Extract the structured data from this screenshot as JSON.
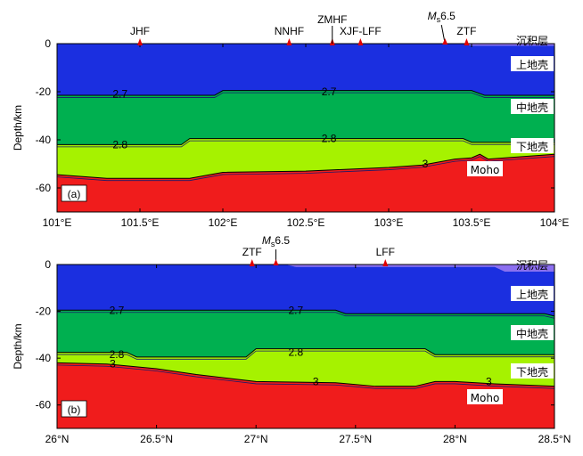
{
  "chart_data": [
    {
      "type": "cross-section",
      "panel_label": "(a)",
      "ylabel": "Depth/km",
      "ylim": [
        -70,
        0
      ],
      "yticks": [
        0,
        -20,
        -40,
        -60
      ],
      "ytick_labels": [
        "0",
        "-20",
        "-40",
        "-60"
      ],
      "xlim": [
        101,
        104
      ],
      "xticks": [
        101,
        101.5,
        102,
        102.5,
        103,
        103.5,
        104
      ],
      "xtick_labels": [
        "101°E",
        "101.5°E",
        "102°E",
        "102.5°E",
        "103°E",
        "103.5°E",
        "104°E"
      ],
      "faults": [
        {
          "name": "JHF",
          "x": 101.5
        },
        {
          "name": "NNHF",
          "x": 102.4
        },
        {
          "name": "ZMHF",
          "x": 102.66
        },
        {
          "name": "XJF-LFF",
          "x": 102.83
        },
        {
          "name": "ZTF",
          "x": 103.47
        }
      ],
      "event": {
        "label_italic": "M",
        "label_sub": "s",
        "label_mag": "6.5",
        "x": 103.34
      },
      "layer_names": [
        "沉积层",
        "上地壳",
        "中地壳",
        "下地壳",
        "Moho"
      ],
      "layer_colors": [
        "#8c6ff0",
        "#1b2fe0",
        "#00b050",
        "#a6f200",
        "#f01c1c"
      ],
      "value_labels": [
        {
          "text": "2.7",
          "x": 101.38,
          "y": -21
        },
        {
          "text": "2.7",
          "x": 102.64,
          "y": -20
        },
        {
          "text": "2.8",
          "x": 101.38,
          "y": -42
        },
        {
          "text": "2.8",
          "x": 102.64,
          "y": -39.5
        },
        {
          "text": "3",
          "x": 103.22,
          "y": -50
        }
      ],
      "interfaces": {
        "sediment_base": {
          "x": [
            101,
            103.45,
            103.5,
            104
          ],
          "y": [
            0,
            0,
            -0.8,
            -0.8
          ]
        },
        "upper_base": {
          "x": [
            101,
            101.95,
            102.0,
            103.5,
            103.58,
            104
          ],
          "y": [
            -21.5,
            -21.5,
            -19.5,
            -19.5,
            -21.5,
            -21.5
          ]
        },
        "middle_base": {
          "x": [
            101,
            101.75,
            101.8,
            103.45,
            103.5,
            104
          ],
          "y": [
            -42,
            -42,
            -39.5,
            -39.5,
            -41,
            -41
          ]
        },
        "moho": {
          "x": [
            101,
            101.3,
            101.8,
            102.0,
            102.5,
            103.0,
            103.2,
            103.4,
            103.5,
            103.55,
            103.6,
            104
          ],
          "y": [
            -54.5,
            -56,
            -56,
            -53.5,
            -53,
            -51.5,
            -50.5,
            -48,
            -47.5,
            -46,
            -48,
            -46
          ]
        }
      }
    },
    {
      "type": "cross-section",
      "panel_label": "(b)",
      "ylabel": "Depth/km",
      "ylim": [
        -70,
        0
      ],
      "yticks": [
        0,
        -20,
        -40,
        -60
      ],
      "ytick_labels": [
        "0",
        "-20",
        "-40",
        "-60"
      ],
      "xlim": [
        26,
        28.5
      ],
      "xticks": [
        26,
        26.5,
        27,
        27.5,
        28,
        28.5
      ],
      "xtick_labels": [
        "26°N",
        "26.5°N",
        "27°N",
        "27.5°N",
        "28°N",
        "28.5°N"
      ],
      "faults": [
        {
          "name": "ZTF",
          "x": 26.98
        },
        {
          "name": "LFF",
          "x": 27.65
        }
      ],
      "event": {
        "label_italic": "M",
        "label_sub": "s",
        "label_mag": "6.5",
        "x": 27.1
      },
      "layer_names": [
        "沉积层",
        "上地壳",
        "中地壳",
        "下地壳",
        "Moho"
      ],
      "layer_colors": [
        "#8c6ff0",
        "#1b2fe0",
        "#00b050",
        "#a6f200",
        "#f01c1c"
      ],
      "value_labels": [
        {
          "text": "2.7",
          "x": 26.3,
          "y": -19.5
        },
        {
          "text": "2.7",
          "x": 27.2,
          "y": -19.5
        },
        {
          "text": "2.8",
          "x": 26.3,
          "y": -38.5
        },
        {
          "text": "2.8",
          "x": 27.2,
          "y": -37.5
        },
        {
          "text": "3",
          "x": 26.28,
          "y": -42.5
        },
        {
          "text": "3",
          "x": 27.3,
          "y": -50
        },
        {
          "text": "3",
          "x": 28.17,
          "y": -50
        }
      ],
      "interfaces": {
        "sediment_base": {
          "x": [
            26,
            27.15,
            27.2,
            28.2,
            28.25,
            28.5
          ],
          "y": [
            0,
            0,
            -1,
            -1,
            -3,
            -3
          ]
        },
        "upper_base": {
          "x": [
            26,
            27.4,
            27.45,
            28.45,
            28.5
          ],
          "y": [
            -19.5,
            -19.5,
            -21,
            -21,
            -22
          ]
        },
        "middle_base": {
          "x": [
            26,
            26.35,
            26.4,
            26.95,
            27.0,
            27.85,
            27.9,
            28.5
          ],
          "y": [
            -37.5,
            -37.5,
            -39.5,
            -39.5,
            -36,
            -36,
            -38.5,
            -38.5
          ]
        },
        "moho": {
          "x": [
            26,
            26.25,
            26.5,
            26.7,
            27.0,
            27.4,
            27.6,
            27.8,
            27.9,
            28.0,
            28.2,
            28.5
          ],
          "y": [
            -42,
            -42.5,
            -44.5,
            -47,
            -50,
            -50.5,
            -52,
            -52,
            -50,
            -50,
            -51,
            -52
          ]
        }
      }
    }
  ]
}
